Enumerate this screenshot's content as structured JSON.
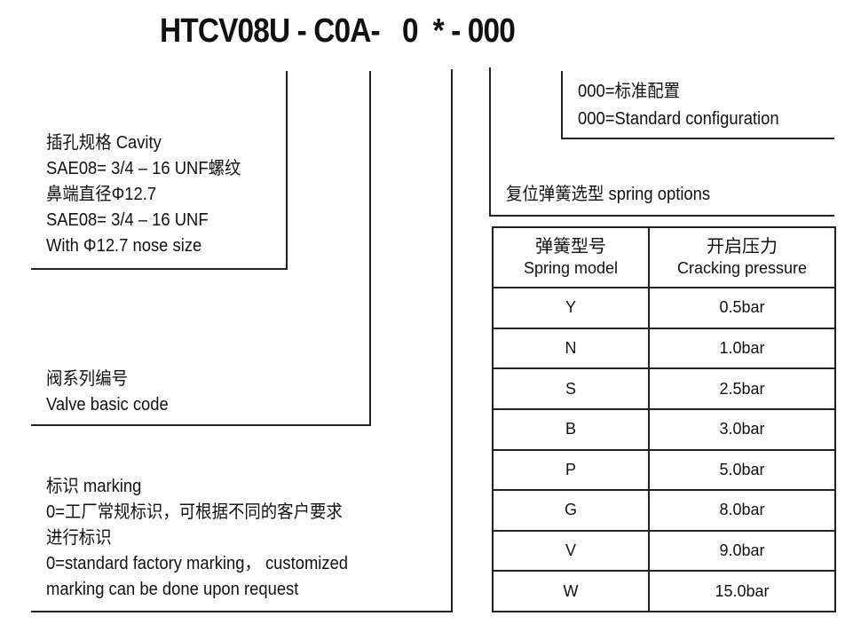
{
  "title": "HTCV08U - C0A-   0  * - 000",
  "config": {
    "line1": "000=标准配置",
    "line2": "000=Standard configuration"
  },
  "spring": {
    "label": "复位弹簧选型  spring options"
  },
  "cavity": {
    "lines": [
      "插孔规格  Cavity",
      "SAE08= 3/4 – 16 UNF螺纹",
      "鼻端直径Φ12.7",
      "SAE08= 3/4 – 16 UNF",
      "With Φ12.7 nose size"
    ]
  },
  "valve": {
    "lines": [
      "阀系列编号",
      "Valve basic code"
    ]
  },
  "marking": {
    "lines": [
      "标识  marking",
      "0=工厂常规标识，可根据不同的客户要求",
      "进行标识",
      "0=standard factory marking， customized",
      "marking can be done  upon  request"
    ]
  },
  "table": {
    "headers": [
      {
        "cn": "弹簧型号",
        "en": "Spring model"
      },
      {
        "cn": "开启压力",
        "en": "Cracking pressure"
      }
    ],
    "rows": [
      [
        "Y",
        "0.5bar"
      ],
      [
        "N",
        "1.0bar"
      ],
      [
        "S",
        "2.5bar"
      ],
      [
        "B",
        "3.0bar"
      ],
      [
        "P",
        "5.0bar"
      ],
      [
        "G",
        "8.0bar"
      ],
      [
        "V",
        "9.0bar"
      ],
      [
        "W",
        "15.0bar"
      ]
    ]
  }
}
